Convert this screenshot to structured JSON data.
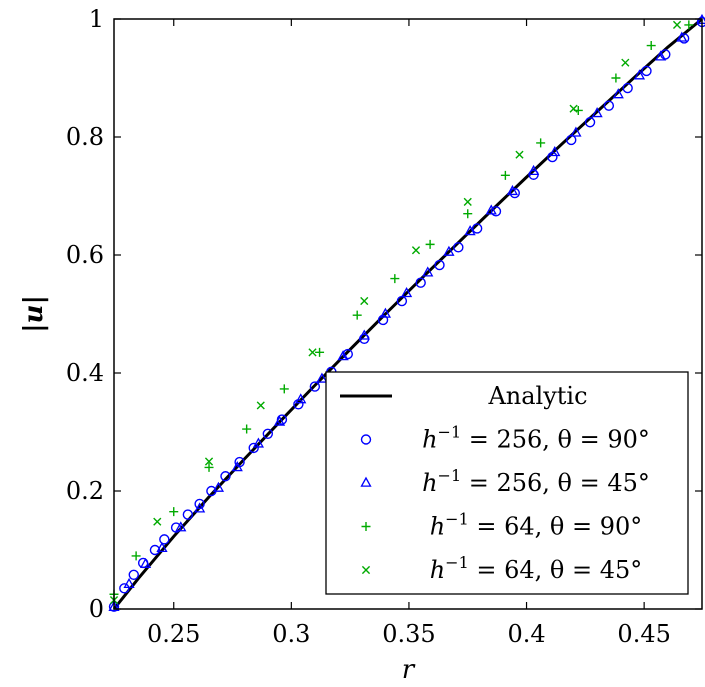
{
  "chart_data": {
    "type": "scatter",
    "title": "",
    "xlabel": "r",
    "ylabel": "|u|",
    "xlim": [
      0.2246,
      0.4746
    ],
    "ylim": [
      0,
      1
    ],
    "xticks": [
      0.25,
      0.3,
      0.35,
      0.4,
      0.45
    ],
    "yticks": [
      0,
      0.2,
      0.4,
      0.6,
      0.8,
      1
    ],
    "xtick_labels": [
      "0.25",
      "0.3",
      "0.35",
      "0.4",
      "0.45"
    ],
    "ytick_labels": [
      "0",
      "0.2",
      "0.4",
      "0.6",
      "0.8",
      "1"
    ],
    "grid": false,
    "legend_position": "bottom-right",
    "series": [
      {
        "name": "Analytic",
        "kind": "line",
        "color": "#000000",
        "x": [
          0.2246,
          0.235,
          0.25,
          0.265,
          0.28,
          0.295,
          0.31,
          0.325,
          0.34,
          0.355,
          0.37,
          0.385,
          0.4,
          0.415,
          0.43,
          0.445,
          0.46,
          0.4746
        ],
        "y": [
          0.0,
          0.052,
          0.123,
          0.19,
          0.254,
          0.317,
          0.379,
          0.44,
          0.5,
          0.559,
          0.617,
          0.675,
          0.732,
          0.788,
          0.843,
          0.898,
          0.952,
          1.0
        ]
      },
      {
        "name": "h^{-1} = 256, θ = 90°",
        "label_prefix": "h",
        "label_exp": "−1",
        "label_rest": " = 256, θ = 90°",
        "kind": "marker",
        "marker": "circle",
        "color": "#0000ff",
        "x": [
          0.2246,
          0.229,
          0.233,
          0.237,
          0.242,
          0.246,
          0.251,
          0.256,
          0.261,
          0.266,
          0.272,
          0.278,
          0.284,
          0.29,
          0.296,
          0.303,
          0.31,
          0.317,
          0.324,
          0.331,
          0.339,
          0.347,
          0.355,
          0.363,
          0.371,
          0.379,
          0.387,
          0.395,
          0.403,
          0.411,
          0.419,
          0.427,
          0.435,
          0.443,
          0.451,
          0.459,
          0.467,
          0.4746
        ],
        "y": [
          0.004,
          0.035,
          0.058,
          0.078,
          0.1,
          0.118,
          0.138,
          0.16,
          0.178,
          0.2,
          0.225,
          0.249,
          0.273,
          0.297,
          0.321,
          0.347,
          0.377,
          0.402,
          0.432,
          0.458,
          0.49,
          0.522,
          0.553,
          0.583,
          0.613,
          0.645,
          0.674,
          0.705,
          0.736,
          0.766,
          0.795,
          0.825,
          0.853,
          0.883,
          0.912,
          0.94,
          0.967,
          0.995
        ]
      },
      {
        "name": "h^{-1} = 256, θ = 45°",
        "label_prefix": "h",
        "label_exp": "−1",
        "label_rest": " = 256, θ = 45°",
        "kind": "marker",
        "marker": "triangle",
        "color": "#0000ff",
        "x": [
          0.2246,
          0.231,
          0.238,
          0.245,
          0.253,
          0.261,
          0.269,
          0.277,
          0.286,
          0.295,
          0.304,
          0.313,
          0.322,
          0.331,
          0.34,
          0.349,
          0.358,
          0.367,
          0.376,
          0.385,
          0.394,
          0.403,
          0.412,
          0.421,
          0.43,
          0.439,
          0.448,
          0.457,
          0.466,
          0.4746
        ],
        "y": [
          0.003,
          0.042,
          0.076,
          0.103,
          0.138,
          0.17,
          0.205,
          0.24,
          0.28,
          0.317,
          0.355,
          0.39,
          0.428,
          0.463,
          0.5,
          0.535,
          0.57,
          0.605,
          0.64,
          0.675,
          0.708,
          0.742,
          0.774,
          0.807,
          0.84,
          0.872,
          0.904,
          0.936,
          0.968,
          0.998
        ]
      },
      {
        "name": "h^{-1} = 64, θ = 90°",
        "label_prefix": "h",
        "label_exp": "−1",
        "label_rest": " = 64, θ = 90°",
        "kind": "marker",
        "marker": "plus",
        "color": "#00aa00",
        "x": [
          0.2246,
          0.234,
          0.25,
          0.265,
          0.281,
          0.297,
          0.312,
          0.328,
          0.344,
          0.359,
          0.375,
          0.391,
          0.406,
          0.422,
          0.438,
          0.453,
          0.469
        ],
        "y": [
          0.025,
          0.09,
          0.165,
          0.24,
          0.305,
          0.373,
          0.435,
          0.498,
          0.56,
          0.618,
          0.67,
          0.735,
          0.79,
          0.845,
          0.9,
          0.955,
          0.99
        ]
      },
      {
        "name": "h^{-1} = 64, θ = 45°",
        "label_prefix": "h",
        "label_exp": "−1",
        "label_rest": " = 64, θ = 45°",
        "kind": "marker",
        "marker": "cross",
        "color": "#00aa00",
        "x": [
          0.2246,
          0.243,
          0.265,
          0.287,
          0.309,
          0.331,
          0.353,
          0.375,
          0.397,
          0.42,
          0.442,
          0.464
        ],
        "y": [
          0.015,
          0.148,
          0.25,
          0.345,
          0.435,
          0.522,
          0.608,
          0.69,
          0.77,
          0.848,
          0.926,
          0.99
        ]
      }
    ]
  }
}
